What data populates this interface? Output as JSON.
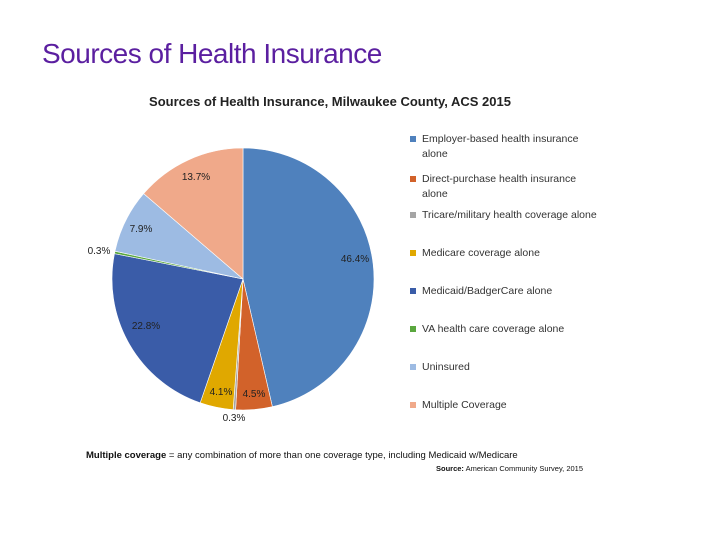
{
  "slide": {
    "title": "Sources of Health Insurance"
  },
  "chart_data": {
    "type": "pie",
    "title": "Sources of Health Insurance, Milwaukee County, ACS 2015",
    "slices": [
      {
        "label": "Employer-based health insurance alone",
        "value": 46.4,
        "display": "46.4%",
        "color": "#4f81bd"
      },
      {
        "label": "Direct-purchase health insurance alone",
        "value": 4.5,
        "display": "4.5%",
        "color": "#d2622a"
      },
      {
        "label": "Tricare/military health coverage alone",
        "value": 0.3,
        "display": "0.3%",
        "color": "#a5a5a5"
      },
      {
        "label": "Medicare coverage alone",
        "value": 4.1,
        "display": "4.1%",
        "color": "#e0a800"
      },
      {
        "label": "Medicaid/BadgerCare alone",
        "value": 22.8,
        "display": "22.8%",
        "color": "#3a5ca8"
      },
      {
        "label": "VA health care coverage alone",
        "value": 0.3,
        "display": "0.3%",
        "color": "#5aa73e"
      },
      {
        "label": "Uninsured",
        "value": 7.9,
        "display": "7.9%",
        "color": "#9dbbe3"
      },
      {
        "label": "Multiple Coverage",
        "value": 13.7,
        "display": "13.7%",
        "color": "#f0a98a"
      }
    ],
    "legend_position": "right"
  },
  "notes": {
    "definition_term": "Multiple coverage",
    "definition_text": " = any combination of more than one coverage type, including Medicaid w/Medicare",
    "source_label": "Source:",
    "source_text": " American Community Survey, 2015"
  }
}
